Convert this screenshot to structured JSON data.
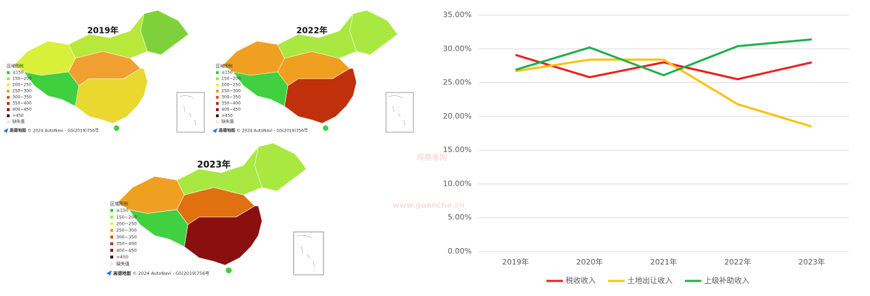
{
  "watermark": {
    "title": "观察者网",
    "url": "www.guancha.cn"
  },
  "maps": [
    {
      "title": "2019年",
      "legend_title": "区域图例",
      "brand": "高德地图",
      "credit": "© 2024 AutoNavi - GS(2019)756号"
    },
    {
      "title": "2022年",
      "legend_title": "区域图例",
      "brand": "高德地图",
      "credit": "© 2024 AutoNavi - GS(2019)756号"
    },
    {
      "title": "2023年",
      "legend_title": "区域图例",
      "brand": "高德地图",
      "credit": "© 2024 AutoNavi - GS(2019)756号"
    }
  ],
  "map_legend": [
    {
      "label": "≤150",
      "color": "#2ecc40"
    },
    {
      "label": "150~200",
      "color": "#9be83a"
    },
    {
      "label": "200~250",
      "color": "#e8f23a"
    },
    {
      "label": "250~300",
      "color": "#f0a020"
    },
    {
      "label": "300~350",
      "color": "#d9541a"
    },
    {
      "label": "350~400",
      "color": "#c0300a"
    },
    {
      "label": "400~450",
      "color": "#8a1010"
    },
    {
      "label": ">450",
      "color": "#4a0505"
    },
    {
      "label": "缺失值",
      "color": "#e8e8e8"
    }
  ],
  "chart_data": {
    "type": "line",
    "categories": [
      "2019年",
      "2020年",
      "2021年",
      "2022年",
      "2023年"
    ],
    "series": [
      {
        "name": "税收收入",
        "color": "#ee1c1c",
        "values": [
          29.1,
          25.8,
          28.0,
          25.5,
          28.0
        ]
      },
      {
        "name": "土地出让收入",
        "color": "#ffc000",
        "values": [
          26.7,
          28.4,
          28.4,
          21.8,
          18.5
        ]
      },
      {
        "name": "上级补助收入",
        "color": "#1aaf4b",
        "values": [
          26.9,
          30.2,
          26.1,
          30.4,
          31.4
        ]
      }
    ],
    "ylim": [
      0,
      35
    ],
    "yticks": [
      {
        "value": 0,
        "label": "0.00%"
      },
      {
        "value": 5,
        "label": "5.00%"
      },
      {
        "value": 10,
        "label": "10.00%"
      },
      {
        "value": 15,
        "label": "15.00%"
      },
      {
        "value": 20,
        "label": "20.00%"
      },
      {
        "value": 25,
        "label": "25.00%"
      },
      {
        "value": 30,
        "label": "30.00%"
      },
      {
        "value": 35,
        "label": "35.00%"
      }
    ],
    "grid": true,
    "legend": "bottom"
  }
}
